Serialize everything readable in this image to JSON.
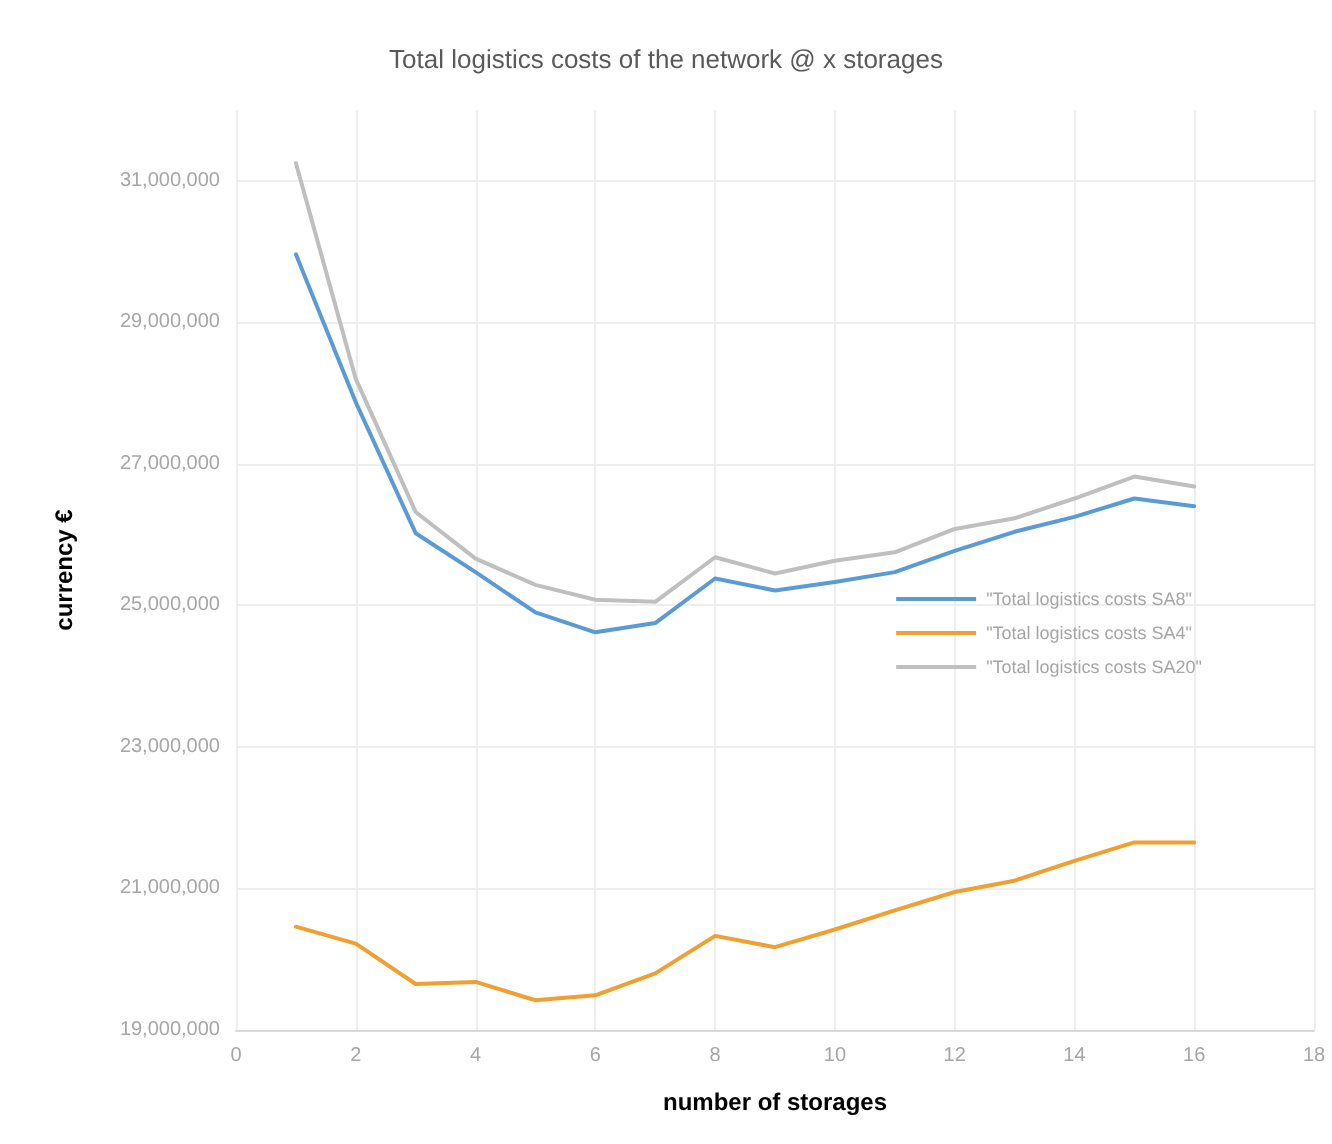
{
  "chart_data": {
    "type": "line",
    "title": "Total logistics costs of the network @ x storages",
    "xlabel": "number of storages",
    "ylabel": "currency €",
    "x": [
      1,
      2,
      3,
      4,
      5,
      6,
      7,
      8,
      9,
      10,
      11,
      12,
      13,
      14,
      15,
      16
    ],
    "series": [
      {
        "name": "\"Total logistics costs SA8\"",
        "color": "#5b9bd5",
        "values": [
          29960000,
          27870000,
          26020000,
          25470000,
          24900000,
          24620000,
          24750000,
          25380000,
          25210000,
          25330000,
          25470000,
          25770000,
          26040000,
          26250000,
          26510000,
          26400000
        ]
      },
      {
        "name": "\"Total logistics costs SA4\"",
        "color": "#f0a030",
        "values": [
          20460000,
          20220000,
          19650000,
          19680000,
          19420000,
          19490000,
          19800000,
          20330000,
          20170000,
          20420000,
          20690000,
          20950000,
          21110000,
          21390000,
          21650000,
          21650000
        ]
      },
      {
        "name": "\"Total logistics costs SA20\"",
        "color": "#bfbfbf",
        "values": [
          31250000,
          28200000,
          26320000,
          25660000,
          25290000,
          25080000,
          25050000,
          25680000,
          25450000,
          25630000,
          25750000,
          26080000,
          26230000,
          26510000,
          26820000,
          26680000
        ]
      }
    ],
    "xlim": [
      0,
      18
    ],
    "xticks": [
      0,
      2,
      4,
      6,
      8,
      10,
      12,
      14,
      16,
      18
    ],
    "ylim": [
      19000000,
      32000000
    ],
    "yticks": [
      {
        "value": 19000000,
        "label": "19,000,000"
      },
      {
        "value": 21000000,
        "label": "21,000,000"
      },
      {
        "value": 23000000,
        "label": "23,000,000"
      },
      {
        "value": 25000000,
        "label": "25,000,000"
      },
      {
        "value": 27000000,
        "label": "27,000,000"
      },
      {
        "value": 29000000,
        "label": "29,000,000"
      },
      {
        "value": 31000000,
        "label": "31,000,000"
      }
    ],
    "grid": true,
    "legend": "right",
    "marker": "none",
    "line_style": "solid"
  }
}
